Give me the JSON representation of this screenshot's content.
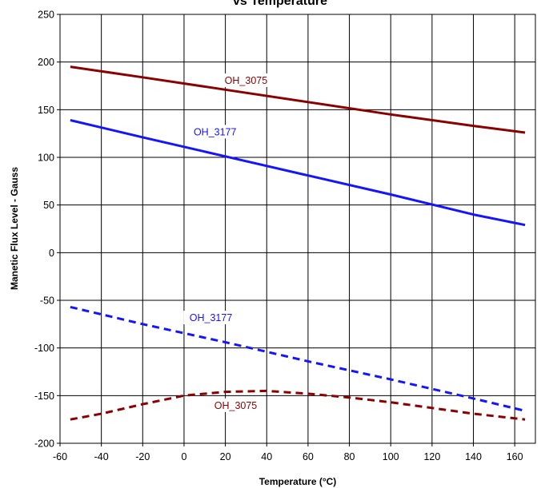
{
  "chart_data": {
    "type": "line",
    "title": "vs Temperature",
    "xlabel": "Temperature (°C)",
    "ylabel": "Manetic Flux Level - Gauss",
    "xlim": [
      -60,
      170
    ],
    "ylim": [
      -200,
      250
    ],
    "xticks": [
      -60,
      -40,
      -20,
      0,
      20,
      40,
      60,
      80,
      100,
      120,
      140,
      160
    ],
    "yticks": [
      -200,
      -150,
      -100,
      -50,
      0,
      50,
      100,
      150,
      200,
      250
    ],
    "grid": true,
    "legend": "none",
    "series": [
      {
        "name": "OH_3075",
        "color": "#8b0000",
        "style": "solid",
        "x": [
          -55,
          -20,
          20,
          60,
          100,
          140,
          165
        ],
        "y": [
          195,
          184,
          171,
          158,
          145,
          133,
          126
        ]
      },
      {
        "name": "OH_3177",
        "color": "#1414ff",
        "style": "solid",
        "x": [
          -55,
          -20,
          20,
          60,
          100,
          140,
          165
        ],
        "y": [
          139,
          121,
          101,
          81,
          61,
          40,
          29
        ]
      },
      {
        "name": "OH_3177",
        "color": "#1414ff",
        "style": "dashed",
        "x": [
          -55,
          -20,
          20,
          60,
          100,
          140,
          165
        ],
        "y": [
          -57,
          -75,
          -94,
          -114,
          -133,
          -153,
          -166
        ]
      },
      {
        "name": "OH_3075",
        "color": "#8b0000",
        "style": "dashed",
        "x": [
          -55,
          -40,
          -20,
          0,
          20,
          40,
          60,
          80,
          100,
          120,
          140,
          165
        ],
        "y": [
          -175,
          -169,
          -159,
          -150,
          -146,
          -145,
          -148,
          -152,
          -157,
          -163,
          -169,
          -175
        ]
      }
    ],
    "annotations": [
      {
        "text": "OH_3075",
        "x": 30,
        "y": 178,
        "color": "#8b0000"
      },
      {
        "text": "OH_3177",
        "x": 15,
        "y": 124,
        "color": "#1414ff"
      },
      {
        "text": "OH_3177",
        "x": 13,
        "y": -71,
        "color": "#1414ff"
      },
      {
        "text": "OH_3075",
        "x": 25,
        "y": -163,
        "color": "#8b0000"
      }
    ]
  }
}
